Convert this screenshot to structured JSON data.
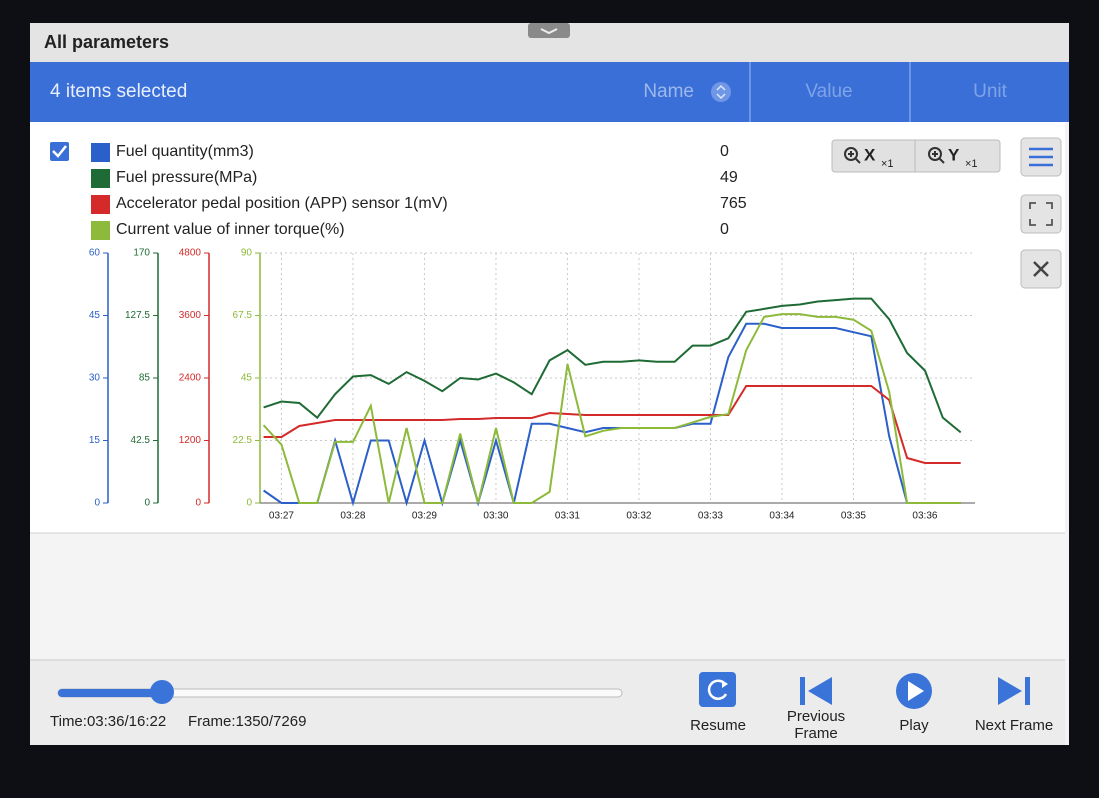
{
  "header": {
    "title": "All parameters"
  },
  "toolbar": {
    "selection": "4 items selected",
    "columns": [
      "Name",
      "Value",
      "Unit"
    ]
  },
  "zoom": [
    {
      "axis": "X",
      "factor": "×1"
    },
    {
      "axis": "Y",
      "factor": "×1"
    }
  ],
  "chart_data": {
    "type": "line",
    "x": [
      206.75,
      207,
      207.25,
      207.5,
      207.75,
      208,
      208.25,
      208.5,
      208.75,
      209,
      209.25,
      209.5,
      209.75,
      210,
      210.25,
      210.5,
      210.75,
      211,
      211.25,
      211.5,
      211.75,
      212,
      212.25,
      212.5,
      212.75,
      213,
      213.25,
      213.5,
      213.75,
      214,
      214.25,
      214.5,
      214.75,
      215,
      215.25,
      215.5,
      215.75,
      216,
      216.25,
      216.5
    ],
    "xlim": [
      206.7,
      216.7
    ],
    "xticks": [
      {
        "value": 207,
        "label": "03:27"
      },
      {
        "value": 208,
        "label": "03:28"
      },
      {
        "value": 209,
        "label": "03:29"
      },
      {
        "value": 210,
        "label": "03:30"
      },
      {
        "value": 211,
        "label": "03:31"
      },
      {
        "value": 212,
        "label": "03:32"
      },
      {
        "value": 213,
        "label": "03:33"
      },
      {
        "value": 214,
        "label": "03:34"
      },
      {
        "value": 215,
        "label": "03:35"
      },
      {
        "value": 216,
        "label": "03:36"
      }
    ],
    "grid": true,
    "series": [
      {
        "name": "Fuel quantity(mm3)",
        "current": 0,
        "color": "#2b5fc9",
        "ylim": [
          0,
          60
        ],
        "yticks": [
          0,
          15,
          30,
          45,
          60
        ],
        "values": [
          3,
          0,
          0,
          0,
          15,
          0,
          15,
          15,
          0,
          15,
          0,
          15,
          0,
          15,
          0,
          19,
          19,
          18,
          17,
          18,
          18,
          18,
          18,
          18,
          19,
          19,
          35,
          43,
          43,
          42,
          42,
          42,
          42,
          41,
          40,
          16,
          0,
          0,
          0,
          0
        ]
      },
      {
        "name": "Fuel pressure(MPa)",
        "current": 49,
        "color": "#1f6b35",
        "ylim": [
          0,
          170
        ],
        "yticks": [
          0,
          42.5,
          85,
          127.5,
          170
        ],
        "values": [
          65,
          69,
          68,
          58,
          74,
          86,
          87,
          81,
          89,
          83,
          76,
          85,
          84,
          88,
          82,
          74,
          97,
          104,
          94,
          96,
          96,
          97,
          96,
          96,
          107,
          107,
          112,
          130,
          132,
          134,
          135,
          137,
          138,
          139,
          139,
          125,
          102,
          90,
          58,
          48
        ]
      },
      {
        "name": "Accelerator pedal position (APP) sensor 1(mV)",
        "current": 765,
        "color": "#d42a2a",
        "ylim": [
          0,
          4800
        ],
        "yticks": [
          0,
          1200,
          2400,
          3600,
          4800
        ],
        "values": [
          1267,
          1267,
          1478,
          1536,
          1594,
          1594,
          1594,
          1594,
          1594,
          1594,
          1594,
          1613,
          1613,
          1632,
          1632,
          1632,
          1728,
          1709,
          1690,
          1690,
          1690,
          1690,
          1690,
          1690,
          1690,
          1690,
          1690,
          2246,
          2246,
          2246,
          2246,
          2246,
          2246,
          2246,
          2246,
          1978,
          864,
          768,
          768,
          768
        ]
      },
      {
        "name": "Current value of inner torque(%)",
        "current": 0,
        "color": "#8dba3a",
        "ylim": [
          0,
          90
        ],
        "yticks": [
          0,
          22.5,
          45,
          67.5,
          90
        ],
        "values": [
          28,
          21,
          0,
          0,
          22,
          22,
          35,
          0,
          27,
          0,
          0,
          25,
          0,
          27,
          0,
          0,
          4,
          50,
          24,
          26,
          27,
          27,
          27,
          27,
          29,
          31,
          32,
          55,
          67,
          68,
          68,
          67,
          67,
          66,
          62,
          40,
          0,
          0,
          0,
          0
        ]
      }
    ]
  },
  "player": {
    "time": "Time:03:36/16:22",
    "frame": "Frame:1350/7269",
    "buttons": [
      {
        "label": [
          "Resume"
        ]
      },
      {
        "label": [
          "Previous",
          "Frame"
        ]
      },
      {
        "label": [
          "Play"
        ]
      },
      {
        "label": [
          "Next Frame"
        ]
      }
    ]
  }
}
